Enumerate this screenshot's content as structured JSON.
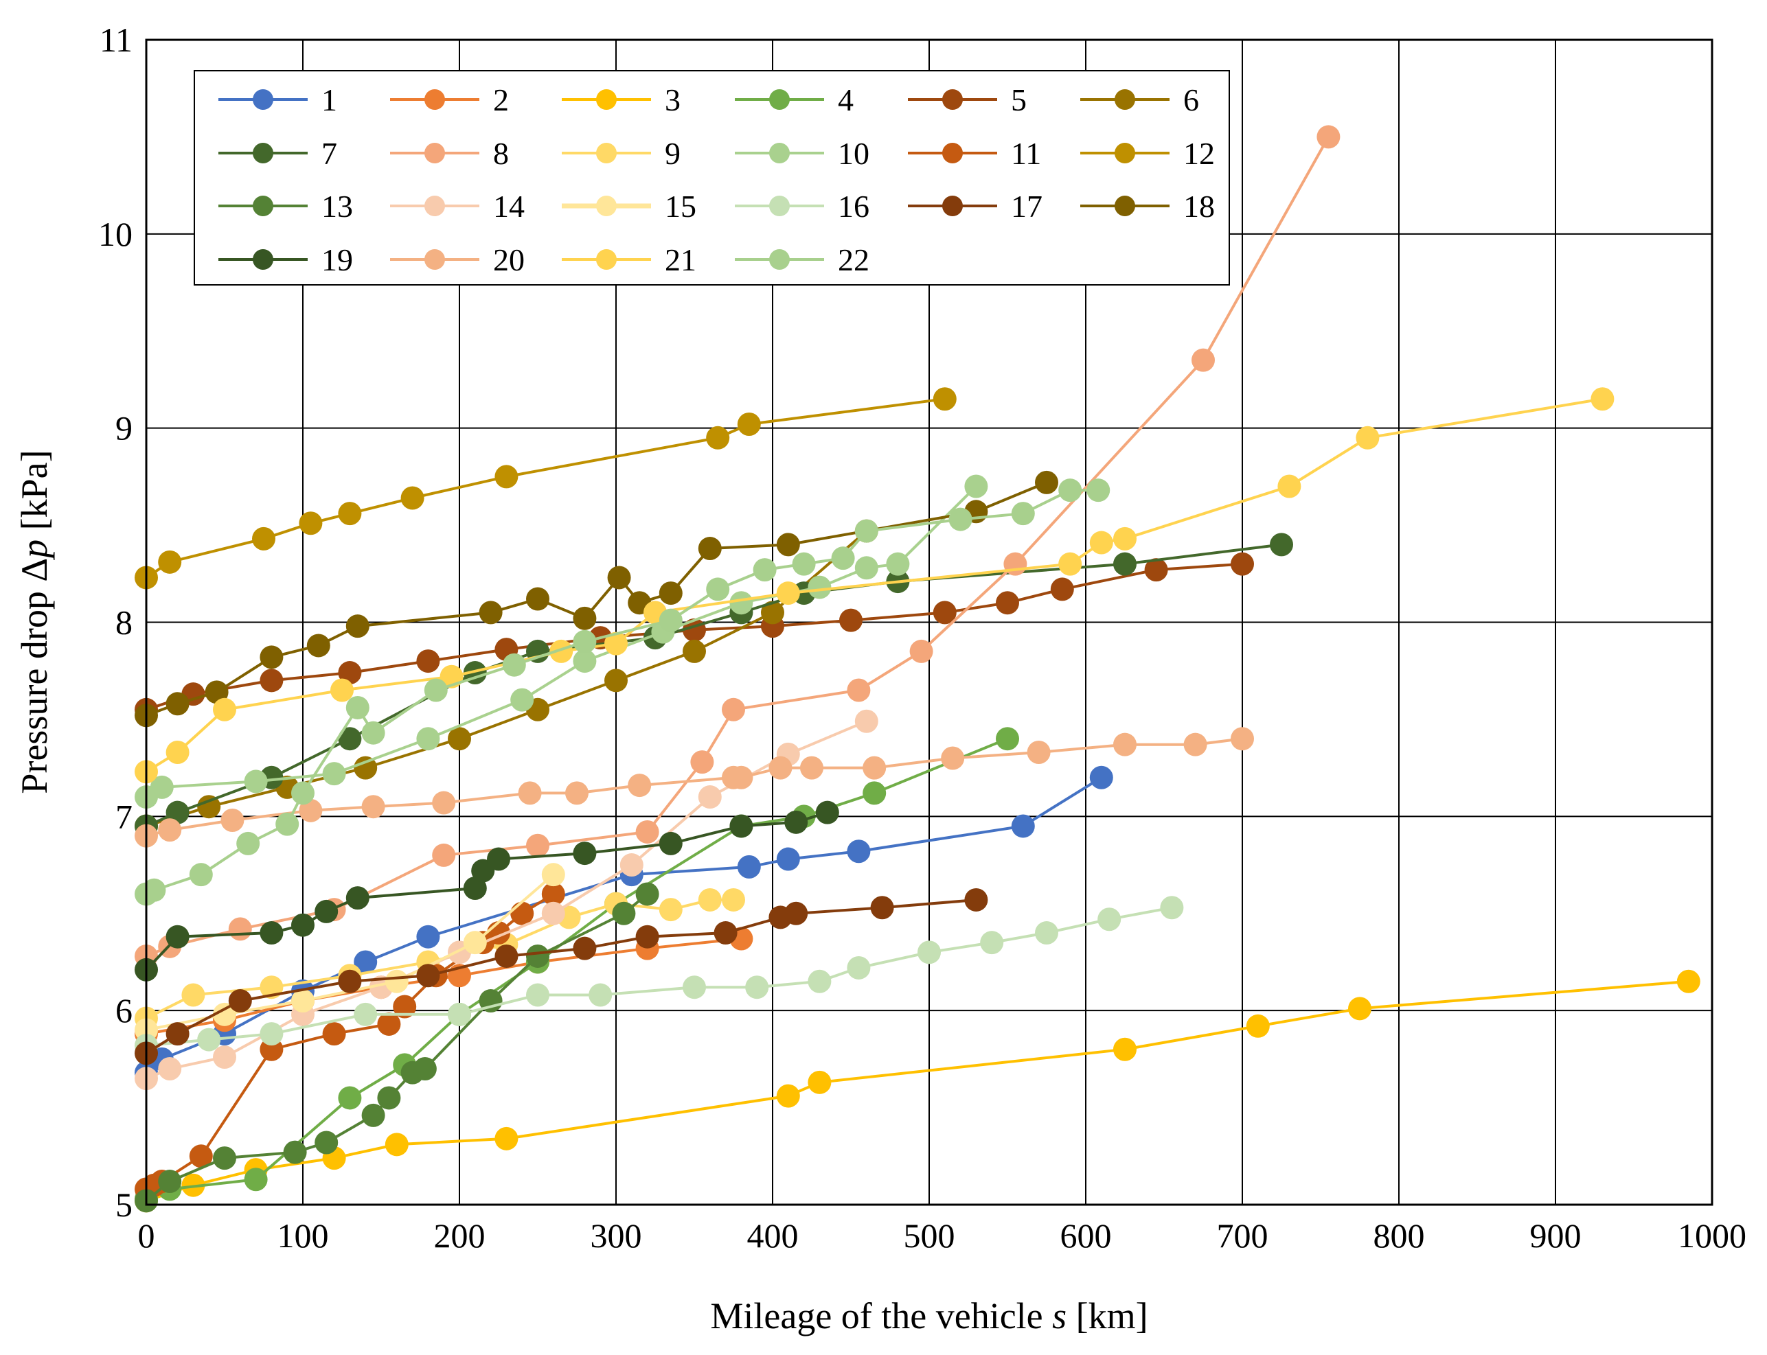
{
  "chart_data": {
    "type": "line",
    "xlabel": "Mileage of the vehicle s [km]",
    "xlabel_parts": [
      "Mileage of the vehicle ",
      "s",
      " [km]"
    ],
    "ylabel": "Pressure drop Δp [kPa]",
    "ylabel_parts": [
      "Pressure drop Δ",
      "p",
      "  [kPa]"
    ],
    "xlim": [
      0,
      1000
    ],
    "ylim": [
      5,
      11
    ],
    "xticks": [
      0,
      100,
      200,
      300,
      400,
      500,
      600,
      700,
      800,
      900,
      1000
    ],
    "yticks": [
      5,
      6,
      7,
      8,
      9,
      10,
      11
    ],
    "grid": true,
    "legend_position": "top-left",
    "series": [
      {
        "name": "1",
        "color": "#4472C4",
        "x": [
          0,
          10,
          50,
          100,
          140,
          180,
          310,
          385,
          410,
          455,
          560,
          610
        ],
        "y": [
          5.68,
          5.75,
          5.88,
          6.1,
          6.25,
          6.38,
          6.7,
          6.74,
          6.78,
          6.82,
          6.95,
          7.2
        ]
      },
      {
        "name": "2",
        "color": "#ED7D31",
        "x": [
          0,
          50,
          100,
          150,
          200,
          250,
          320,
          380
        ],
        "y": [
          5.88,
          5.95,
          6.05,
          6.12,
          6.18,
          6.25,
          6.32,
          6.37
        ]
      },
      {
        "name": "3",
        "color": "#FFC000",
        "x": [
          0,
          30,
          70,
          120,
          160,
          230,
          410,
          430,
          625,
          710,
          775,
          985
        ],
        "y": [
          5.02,
          5.1,
          5.18,
          5.24,
          5.31,
          5.34,
          5.56,
          5.63,
          5.8,
          5.92,
          6.01,
          6.15
        ]
      },
      {
        "name": "4",
        "color": "#70AD47",
        "x": [
          0,
          15,
          70,
          130,
          165,
          200,
          250,
          300,
          380,
          420,
          465,
          550
        ],
        "y": [
          5.03,
          5.08,
          5.13,
          5.55,
          5.72,
          5.98,
          6.25,
          6.55,
          6.95,
          7.0,
          7.12,
          7.4
        ]
      },
      {
        "name": "5",
        "color": "#9E480E",
        "x": [
          0,
          30,
          80,
          130,
          180,
          230,
          290,
          350,
          400,
          450,
          510,
          550,
          585,
          645,
          700
        ],
        "y": [
          7.55,
          7.63,
          7.7,
          7.74,
          7.8,
          7.86,
          7.92,
          7.96,
          7.98,
          8.01,
          8.05,
          8.1,
          8.17,
          8.27,
          8.3
        ]
      },
      {
        "name": "6",
        "color": "#997300",
        "x": [
          0,
          40,
          90,
          140,
          200,
          250,
          300,
          350,
          400,
          460
        ],
        "y": [
          6.95,
          7.05,
          7.15,
          7.25,
          7.4,
          7.55,
          7.7,
          7.85,
          8.05,
          8.47
        ]
      },
      {
        "name": "7",
        "color": "#43682B",
        "x": [
          0,
          20,
          80,
          130,
          210,
          250,
          325,
          380,
          420,
          480,
          625,
          725
        ],
        "y": [
          6.95,
          7.02,
          7.2,
          7.4,
          7.74,
          7.85,
          7.92,
          8.05,
          8.15,
          8.21,
          8.3,
          8.4
        ]
      },
      {
        "name": "8",
        "color": "#F4A67A",
        "x": [
          0,
          15,
          60,
          120,
          190,
          250,
          320,
          355,
          375,
          455,
          495,
          555,
          675,
          755
        ],
        "y": [
          6.28,
          6.33,
          6.42,
          6.52,
          6.8,
          6.85,
          6.92,
          7.28,
          7.55,
          7.65,
          7.85,
          8.3,
          9.35,
          10.5
        ]
      },
      {
        "name": "9",
        "color": "#FFD966",
        "x": [
          0,
          30,
          80,
          130,
          180,
          230,
          270,
          300,
          335,
          360,
          375
        ],
        "y": [
          5.96,
          6.08,
          6.12,
          6.18,
          6.25,
          6.34,
          6.48,
          6.55,
          6.52,
          6.57,
          6.57
        ]
      },
      {
        "name": "10",
        "color": "#A9D18E",
        "x": [
          0,
          10,
          70,
          120,
          180,
          240,
          280,
          330,
          380,
          430,
          460,
          480,
          530
        ],
        "y": [
          7.1,
          7.15,
          7.18,
          7.22,
          7.4,
          7.6,
          7.8,
          7.95,
          8.1,
          8.18,
          8.28,
          8.3,
          8.7
        ]
      },
      {
        "name": "11",
        "color": "#C55A11",
        "x": [
          0,
          5,
          10,
          35,
          80,
          120,
          155,
          165,
          185,
          215,
          225,
          240,
          260
        ],
        "y": [
          5.08,
          5.1,
          5.12,
          5.25,
          5.8,
          5.88,
          5.93,
          6.02,
          6.18,
          6.35,
          6.4,
          6.5,
          6.6
        ]
      },
      {
        "name": "12",
        "color": "#BF9000",
        "x": [
          0,
          15,
          75,
          105,
          130,
          170,
          230,
          365,
          385,
          510
        ],
        "y": [
          8.23,
          8.31,
          8.43,
          8.51,
          8.56,
          8.64,
          8.75,
          8.95,
          9.02,
          9.15
        ]
      },
      {
        "name": "13",
        "color": "#548235",
        "x": [
          0,
          15,
          50,
          95,
          115,
          145,
          155,
          170,
          178,
          220,
          250,
          305,
          320
        ],
        "y": [
          5.02,
          5.12,
          5.24,
          5.27,
          5.32,
          5.46,
          5.55,
          5.68,
          5.7,
          6.05,
          6.28,
          6.5,
          6.6
        ]
      },
      {
        "name": "14",
        "color": "#F8CBAD",
        "x": [
          0,
          15,
          50,
          100,
          150,
          200,
          260,
          310,
          360,
          410,
          460
        ],
        "y": [
          5.65,
          5.7,
          5.76,
          5.98,
          6.12,
          6.3,
          6.5,
          6.75,
          7.1,
          7.32,
          7.49
        ]
      },
      {
        "name": "15",
        "color": "#FFE699",
        "x": [
          0,
          50,
          100,
          160,
          210,
          260
        ],
        "y": [
          5.9,
          5.98,
          6.05,
          6.15,
          6.35,
          6.7
        ]
      },
      {
        "name": "16",
        "color": "#C5E0B4",
        "x": [
          0,
          40,
          80,
          140,
          200,
          250,
          290,
          350,
          390,
          430,
          455,
          500,
          540,
          575,
          615,
          655
        ],
        "y": [
          5.82,
          5.85,
          5.88,
          5.98,
          5.98,
          6.08,
          6.08,
          6.12,
          6.12,
          6.15,
          6.22,
          6.3,
          6.35,
          6.4,
          6.47,
          6.53
        ]
      },
      {
        "name": "17",
        "color": "#843C0C",
        "x": [
          0,
          20,
          60,
          130,
          180,
          230,
          280,
          320,
          370,
          405,
          415,
          470,
          530
        ],
        "y": [
          5.78,
          5.88,
          6.05,
          6.15,
          6.18,
          6.28,
          6.32,
          6.38,
          6.4,
          6.48,
          6.5,
          6.53,
          6.57
        ]
      },
      {
        "name": "18",
        "color": "#7F6000",
        "x": [
          0,
          20,
          45,
          80,
          110,
          135,
          220,
          250,
          280,
          302,
          315,
          335,
          360,
          410,
          530,
          575
        ],
        "y": [
          7.52,
          7.58,
          7.64,
          7.82,
          7.88,
          7.98,
          8.05,
          8.12,
          8.02,
          8.23,
          8.1,
          8.15,
          8.38,
          8.4,
          8.57,
          8.72
        ]
      },
      {
        "name": "19",
        "color": "#375623",
        "x": [
          0,
          20,
          80,
          100,
          115,
          135,
          210,
          215,
          225,
          280,
          335,
          380,
          415,
          435
        ],
        "y": [
          6.21,
          6.38,
          6.4,
          6.44,
          6.51,
          6.58,
          6.63,
          6.72,
          6.78,
          6.81,
          6.86,
          6.95,
          6.97,
          7.02
        ]
      },
      {
        "name": "20",
        "color": "#F4B183",
        "x": [
          0,
          15,
          55,
          105,
          145,
          190,
          245,
          275,
          315,
          375,
          380,
          405,
          425,
          465,
          515,
          570,
          625,
          670,
          700
        ],
        "y": [
          6.9,
          6.93,
          6.98,
          7.03,
          7.05,
          7.07,
          7.12,
          7.12,
          7.16,
          7.2,
          7.2,
          7.25,
          7.25,
          7.25,
          7.3,
          7.33,
          7.37,
          7.37,
          7.4
        ]
      },
      {
        "name": "21",
        "color": "#FFD34F",
        "x": [
          0,
          20,
          50,
          125,
          195,
          265,
          300,
          325,
          410,
          590,
          610,
          625,
          730,
          780,
          930
        ],
        "y": [
          7.23,
          7.33,
          7.55,
          7.65,
          7.72,
          7.85,
          7.89,
          8.05,
          8.15,
          8.3,
          8.41,
          8.43,
          8.7,
          8.95,
          9.15
        ]
      },
      {
        "name": "22",
        "color": "#A8D08D",
        "x": [
          0,
          5,
          35,
          65,
          90,
          100,
          135,
          145,
          185,
          235,
          280,
          335,
          365,
          395,
          420,
          445,
          460,
          520,
          560,
          590,
          608
        ],
        "y": [
          6.6,
          6.62,
          6.7,
          6.86,
          6.96,
          7.12,
          7.56,
          7.43,
          7.65,
          7.78,
          7.9,
          8.01,
          8.17,
          8.27,
          8.3,
          8.33,
          8.47,
          8.53,
          8.56,
          8.68,
          8.68
        ]
      }
    ]
  }
}
